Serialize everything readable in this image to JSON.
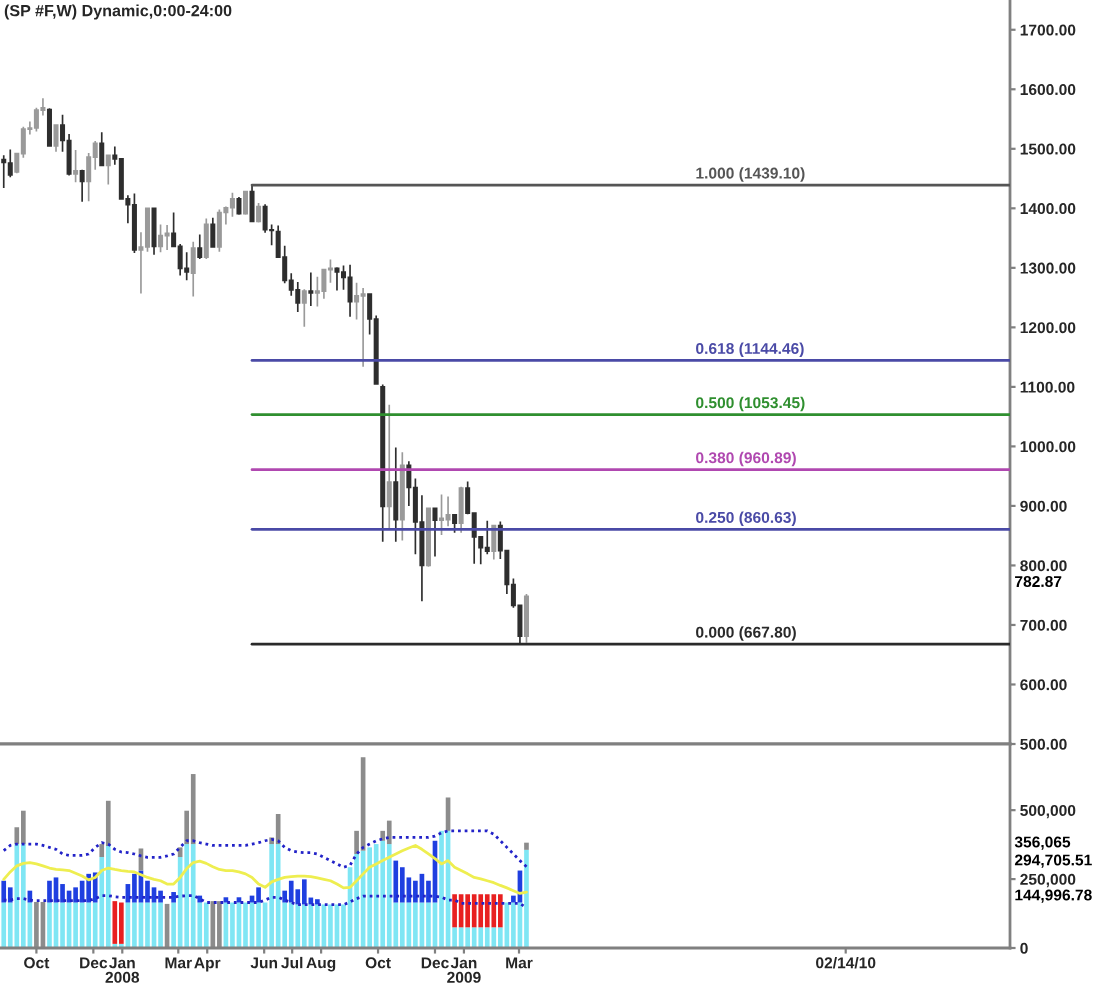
{
  "chart_data": [
    {
      "type": "candlestick",
      "title": "(SP #F,W) Dynamic,0:00-24:00",
      "x": [
        "2007-08-27",
        "2007-09-03",
        "2007-09-10",
        "2007-09-17",
        "2007-09-24",
        "2007-10-01",
        "2007-10-08",
        "2007-10-15",
        "2007-10-22",
        "2007-10-29",
        "2007-11-05",
        "2007-11-12",
        "2007-11-19",
        "2007-11-26",
        "2007-12-03",
        "2007-12-10",
        "2007-12-17",
        "2007-12-24",
        "2007-12-31",
        "2008-01-07",
        "2008-01-14",
        "2008-01-21",
        "2008-01-28",
        "2008-02-04",
        "2008-02-11",
        "2008-02-18",
        "2008-02-25",
        "2008-03-03",
        "2008-03-10",
        "2008-03-17",
        "2008-03-24",
        "2008-03-31",
        "2008-04-07",
        "2008-04-14",
        "2008-04-21",
        "2008-04-28",
        "2008-05-05",
        "2008-05-12",
        "2008-05-19",
        "2008-05-26",
        "2008-06-02",
        "2008-06-09",
        "2008-06-16",
        "2008-06-23",
        "2008-06-30",
        "2008-07-07",
        "2008-07-14",
        "2008-07-21",
        "2008-07-28",
        "2008-08-04",
        "2008-08-11",
        "2008-08-18",
        "2008-08-25",
        "2008-09-01",
        "2008-09-08",
        "2008-09-15",
        "2008-09-22",
        "2008-09-29",
        "2008-10-06",
        "2008-10-13",
        "2008-10-20",
        "2008-10-27",
        "2008-11-03",
        "2008-11-10",
        "2008-11-17",
        "2008-11-24",
        "2008-12-01",
        "2008-12-08",
        "2008-12-15",
        "2008-12-22",
        "2008-12-29",
        "2009-01-05",
        "2009-01-12",
        "2009-01-19",
        "2009-01-26",
        "2009-02-02",
        "2009-02-09",
        "2009-02-16",
        "2009-02-23",
        "2009-03-02",
        "2009-03-09"
      ],
      "ohlc": [
        [
          1482,
          1489,
          1434,
          1477
        ],
        [
          1476,
          1499,
          1452,
          1456
        ],
        [
          1461,
          1493,
          1459,
          1492
        ],
        [
          1492,
          1537,
          1485,
          1533
        ],
        [
          1533,
          1546,
          1524,
          1535
        ],
        [
          1535,
          1569,
          1529,
          1565
        ],
        [
          1565,
          1585,
          1556,
          1569
        ],
        [
          1566,
          1568,
          1505,
          1505
        ],
        [
          1505,
          1540,
          1495,
          1540
        ],
        [
          1540,
          1557,
          1495,
          1514
        ],
        [
          1514,
          1525,
          1455,
          1458
        ],
        [
          1458,
          1498,
          1444,
          1463
        ],
        [
          1463,
          1465,
          1411,
          1445
        ],
        [
          1445,
          1493,
          1412,
          1486
        ],
        [
          1486,
          1513,
          1465,
          1509
        ],
        [
          1509,
          1528,
          1472,
          1472
        ],
        [
          1472,
          1490,
          1440,
          1489
        ],
        [
          1489,
          1504,
          1473,
          1483
        ],
        [
          1483,
          1483,
          1416,
          1416
        ],
        [
          1416,
          1422,
          1375,
          1406
        ],
        [
          1406,
          1425,
          1325,
          1330
        ],
        [
          1330,
          1360,
          1257,
          1335
        ],
        [
          1335,
          1401,
          1327,
          1400
        ],
        [
          1400,
          1401,
          1322,
          1336
        ],
        [
          1336,
          1373,
          1326,
          1354
        ],
        [
          1354,
          1372,
          1330,
          1358
        ],
        [
          1358,
          1393,
          1335,
          1336
        ],
        [
          1336,
          1340,
          1287,
          1299
        ],
        [
          1299,
          1326,
          1279,
          1293
        ],
        [
          1291,
          1344,
          1252,
          1333
        ],
        [
          1333,
          1356,
          1315,
          1318
        ],
        [
          1318,
          1383,
          1315,
          1373
        ],
        [
          1373,
          1384,
          1335,
          1335
        ],
        [
          1335,
          1398,
          1327,
          1393
        ],
        [
          1393,
          1403,
          1373,
          1401
        ],
        [
          1401,
          1426,
          1386,
          1416
        ],
        [
          1416,
          1419,
          1389,
          1391
        ],
        [
          1391,
          1428,
          1389,
          1428
        ],
        [
          1428,
          1439.1,
          1377,
          1378
        ],
        [
          1378,
          1409,
          1376,
          1403
        ],
        [
          1403,
          1407,
          1359,
          1364
        ],
        [
          1364,
          1373,
          1338,
          1363
        ],
        [
          1361,
          1371,
          1317,
          1318
        ],
        [
          1318,
          1337,
          1274,
          1279
        ],
        [
          1279,
          1291,
          1253,
          1263
        ],
        [
          1263,
          1276,
          1226,
          1241
        ],
        [
          1241,
          1264,
          1201,
          1261
        ],
        [
          1261,
          1292,
          1236,
          1258
        ],
        [
          1258,
          1285,
          1235,
          1261
        ],
        [
          1261,
          1298,
          1248,
          1297
        ],
        [
          1297,
          1314,
          1275,
          1299
        ],
        [
          1299,
          1301,
          1262,
          1293
        ],
        [
          1293,
          1304,
          1263,
          1284
        ],
        [
          1284,
          1305,
          1218,
          1243
        ],
        [
          1243,
          1275,
          1213,
          1253
        ],
        [
          1253,
          1266,
          1134,
          1256
        ],
        [
          1256,
          1256,
          1188,
          1214
        ],
        [
          1214,
          1220,
          1105,
          1105
        ],
        [
          1100,
          1104,
          840,
          899
        ],
        [
          899,
          1070,
          862,
          940
        ],
        [
          940,
          998,
          840,
          877
        ],
        [
          877,
          990,
          842,
          968
        ],
        [
          968,
          975,
          900,
          931
        ],
        [
          931,
          946,
          819,
          873
        ],
        [
          873,
          918,
          740,
          800
        ],
        [
          800,
          896,
          798,
          896
        ],
        [
          896,
          896,
          815,
          876
        ],
        [
          876,
          919,
          851,
          879
        ],
        [
          877,
          916,
          866,
          885
        ],
        [
          885,
          885,
          855,
          871
        ],
        [
          871,
          932,
          855,
          930
        ],
        [
          930,
          941,
          886,
          888
        ],
        [
          888,
          889,
          803,
          848
        ],
        [
          848,
          849,
          802,
          830
        ],
        [
          830,
          875,
          819,
          824
        ],
        [
          824,
          868,
          810,
          867
        ],
        [
          867,
          874,
          811,
          825
        ],
        [
          825,
          825,
          752,
          768
        ],
        [
          768,
          778,
          729,
          733
        ],
        [
          733,
          734,
          667.8,
          681
        ],
        [
          681,
          752,
          670,
          748
        ]
      ],
      "colors": [
        "#2e2e2e",
        "#2e2e2e",
        "#9a9a9a",
        "#9a9a9a",
        "#9a9a9a",
        "#9a9a9a",
        "#9a9a9a",
        "#2e2e2e",
        "#9a9a9a",
        "#2e2e2e",
        "#2e2e2e",
        "#9a9a9a",
        "#2e2e2e",
        "#9a9a9a",
        "#9a9a9a",
        "#2e2e2e",
        "#9a9a9a",
        "#2e2e2e",
        "#2e2e2e",
        "#2e2e2e",
        "#2e2e2e",
        "#9a9a9a",
        "#9a9a9a",
        "#2e2e2e",
        "#9a9a9a",
        "#9a9a9a",
        "#2e2e2e",
        "#2e2e2e",
        "#2e2e2e",
        "#9a9a9a",
        "#2e2e2e",
        "#9a9a9a",
        "#2e2e2e",
        "#9a9a9a",
        "#9a9a9a",
        "#9a9a9a",
        "#2e2e2e",
        "#9a9a9a",
        "#2e2e2e",
        "#9a9a9a",
        "#2e2e2e",
        "#2e2e2e",
        "#2e2e2e",
        "#2e2e2e",
        "#2e2e2e",
        "#2e2e2e",
        "#9a9a9a",
        "#2e2e2e",
        "#9a9a9a",
        "#9a9a9a",
        "#9a9a9a",
        "#2e2e2e",
        "#2e2e2e",
        "#2e2e2e",
        "#9a9a9a",
        "#9a9a9a",
        "#2e2e2e",
        "#2e2e2e",
        "#2e2e2e",
        "#9a9a9a",
        "#2e2e2e",
        "#9a9a9a",
        "#2e2e2e",
        "#2e2e2e",
        "#2e2e2e",
        "#9a9a9a",
        "#2e2e2e",
        "#9a9a9a",
        "#9a9a9a",
        "#2e2e2e",
        "#9a9a9a",
        "#2e2e2e",
        "#2e2e2e",
        "#2e2e2e",
        "#2e2e2e",
        "#9a9a9a",
        "#2e2e2e",
        "#2e2e2e",
        "#2e2e2e",
        "#2e2e2e",
        "#9a9a9a"
      ],
      "series": [
        {
          "type": "line",
          "name": "1.000 (1439.10)",
          "color": "#555555",
          "x": [
            "2008-05-19",
            "2010-08-09"
          ],
          "values": [
            1439.1,
            1439.1
          ]
        },
        {
          "type": "line",
          "name": "0.618 (1144.46)",
          "color": "#4a4aa6",
          "x": [
            "2008-05-19",
            "2010-08-09"
          ],
          "values": [
            1144.46,
            1144.46
          ]
        },
        {
          "type": "line",
          "name": "0.500 (1053.45)",
          "color": "#2f8f2f",
          "x": [
            "2008-05-19",
            "2010-08-09"
          ],
          "values": [
            1053.45,
            1053.45
          ]
        },
        {
          "type": "line",
          "name": "0.380 (960.89)",
          "color": "#b048b0",
          "x": [
            "2008-05-19",
            "2010-08-09"
          ],
          "values": [
            960.89,
            960.89
          ]
        },
        {
          "type": "line",
          "name": "0.250 (860.63)",
          "color": "#4a4aa6",
          "x": [
            "2008-05-19",
            "2010-08-09"
          ],
          "values": [
            860.63,
            860.63
          ]
        },
        {
          "type": "line",
          "name": "0.000 (667.80)",
          "color": "#2a2a2a",
          "x": [
            "2008-05-19",
            "2010-08-09"
          ],
          "values": [
            667.8,
            667.8
          ]
        }
      ],
      "xlim": [
        "2007-08-23",
        "2010-08-09"
      ],
      "ylim": [
        500,
        1750
      ],
      "yticks": [
        {
          "value": 500,
          "label": "500.00"
        },
        {
          "value": 600,
          "label": "600.00"
        },
        {
          "value": 700,
          "label": "700.00"
        },
        {
          "value": 800,
          "label": "800.00"
        },
        {
          "value": 900,
          "label": "900.00"
        },
        {
          "value": 1000,
          "label": "1000.00"
        },
        {
          "value": 1100,
          "label": "1100.00"
        },
        {
          "value": 1200,
          "label": "1200.00"
        },
        {
          "value": 1300,
          "label": "1300.00"
        },
        {
          "value": 1400,
          "label": "1400.00"
        },
        {
          "value": 1500,
          "label": "1500.00"
        },
        {
          "value": 1600,
          "label": "1600.00"
        },
        {
          "value": 1700,
          "label": "1700.00"
        }
      ],
      "tick_labels": "y",
      "annotations": [
        "782.87"
      ]
    },
    {
      "type": "bar",
      "stacked": true,
      "x": [
        "2007-08-27",
        "2007-09-03",
        "2007-09-10",
        "2007-09-17",
        "2007-09-24",
        "2007-10-01",
        "2007-10-08",
        "2007-10-15",
        "2007-10-22",
        "2007-10-29",
        "2007-11-05",
        "2007-11-12",
        "2007-11-19",
        "2007-11-26",
        "2007-12-03",
        "2007-12-10",
        "2007-12-17",
        "2007-12-24",
        "2007-12-31",
        "2008-01-07",
        "2008-01-14",
        "2008-01-21",
        "2008-01-28",
        "2008-02-04",
        "2008-02-11",
        "2008-02-18",
        "2008-02-25",
        "2008-03-03",
        "2008-03-10",
        "2008-03-17",
        "2008-03-24",
        "2008-03-31",
        "2008-04-07",
        "2008-04-14",
        "2008-04-21",
        "2008-04-28",
        "2008-05-05",
        "2008-05-12",
        "2008-05-19",
        "2008-05-26",
        "2008-06-02",
        "2008-06-09",
        "2008-06-16",
        "2008-06-23",
        "2008-06-30",
        "2008-07-07",
        "2008-07-14",
        "2008-07-21",
        "2008-07-28",
        "2008-08-04",
        "2008-08-11",
        "2008-08-18",
        "2008-08-25",
        "2008-09-01",
        "2008-09-08",
        "2008-09-15",
        "2008-09-22",
        "2008-09-29",
        "2008-10-06",
        "2008-10-13",
        "2008-10-20",
        "2008-10-27",
        "2008-11-03",
        "2008-11-10",
        "2008-11-17",
        "2008-11-24",
        "2008-12-01",
        "2008-12-08",
        "2008-12-15",
        "2008-12-22",
        "2008-12-29",
        "2009-01-05",
        "2009-01-12",
        "2009-01-19",
        "2009-01-26",
        "2009-02-02",
        "2009-02-09",
        "2009-02-16",
        "2009-02-23",
        "2009-03-02",
        "2009-03-09"
      ],
      "series": [
        {
          "type": "bar",
          "color": "#7fe6f4",
          "values": [
            165000,
            165000,
            377000,
            377000,
            165000,
            null,
            null,
            165000,
            165000,
            165000,
            165000,
            165000,
            165000,
            165000,
            165000,
            330000,
            370000,
            15000,
            15000,
            165000,
            165000,
            165000,
            165000,
            165000,
            165000,
            null,
            165000,
            330000,
            377000,
            377000,
            165000,
            165000,
            null,
            null,
            165000,
            165000,
            165000,
            165000,
            165000,
            165000,
            165000,
            377000,
            377000,
            165000,
            165000,
            158000,
            158000,
            158000,
            158000,
            158000,
            158000,
            158000,
            158000,
            293000,
            341000,
            353000,
            365000,
            377000,
            389000,
            377000,
            165000,
            165000,
            165000,
            165000,
            165000,
            165000,
            165000,
            425000,
            425000,
            75000,
            75000,
            75000,
            75000,
            75000,
            75000,
            75000,
            75000,
            165000,
            165000,
            165000,
            356065
          ]
        },
        {
          "type": "bar",
          "color": "#1f3fe0",
          "values": [
            79000,
            55000,
            null,
            null,
            43000,
            null,
            null,
            79000,
            91000,
            67000,
            43000,
            55000,
            79000,
            104000,
            109000,
            null,
            null,
            null,
            null,
            67000,
            104000,
            116000,
            79000,
            55000,
            43000,
            null,
            38000,
            null,
            null,
            null,
            25000,
            null,
            null,
            null,
            19000,
            null,
            19000,
            null,
            25000,
            55000,
            null,
            null,
            null,
            43000,
            79000,
            55000,
            91000,
            25000,
            19000,
            null,
            null,
            null,
            null,
            null,
            null,
            null,
            null,
            null,
            null,
            null,
            152000,
            128000,
            91000,
            79000,
            104000,
            79000,
            224000,
            null,
            null,
            null,
            null,
            null,
            null,
            null,
            null,
            null,
            null,
            null,
            25000,
            116000,
            null
          ]
        },
        {
          "type": "bar",
          "color": "#e82020",
          "values": [
            null,
            null,
            null,
            null,
            null,
            null,
            null,
            null,
            null,
            null,
            null,
            null,
            null,
            null,
            null,
            null,
            null,
            155000,
            150000,
            null,
            null,
            null,
            null,
            null,
            null,
            null,
            null,
            null,
            null,
            null,
            null,
            null,
            null,
            null,
            null,
            null,
            null,
            null,
            null,
            null,
            null,
            null,
            null,
            null,
            null,
            null,
            null,
            null,
            null,
            null,
            null,
            null,
            null,
            null,
            null,
            null,
            null,
            null,
            null,
            null,
            null,
            null,
            null,
            null,
            null,
            null,
            null,
            null,
            null,
            120000,
            120000,
            120000,
            120000,
            120000,
            120000,
            120000,
            120000,
            null,
            null,
            null,
            null
          ]
        },
        {
          "type": "bar",
          "color": "#8c8c8c",
          "values": [
            null,
            null,
            61000,
            121000,
            null,
            167000,
            167000,
            null,
            null,
            null,
            null,
            null,
            null,
            null,
            null,
            47000,
            164000,
            null,
            null,
            null,
            null,
            80000,
            null,
            null,
            null,
            160000,
            null,
            35000,
            121000,
            254000,
            null,
            null,
            170000,
            170000,
            null,
            null,
            null,
            null,
            null,
            null,
            null,
            24000,
            109000,
            null,
            null,
            null,
            null,
            null,
            null,
            null,
            null,
            null,
            null,
            null,
            84000,
            339000,
            null,
            null,
            36000,
            85000,
            null,
            null,
            null,
            null,
            null,
            null,
            null,
            null,
            121000,
            null,
            null,
            null,
            null,
            null,
            null,
            null,
            null,
            null,
            null,
            null,
            26000
          ]
        },
        {
          "type": "line",
          "color": "#2323c8",
          "line_style": "dotted",
          "values": [
            353000,
            372000,
            377000,
            377000,
            377000,
            377000,
            372000,
            365000,
            358000,
            341000,
            336000,
            336000,
            336000,
            341000,
            365000,
            382000,
            377000,
            358000,
            348000,
            346000,
            341000,
            334000,
            329000,
            329000,
            329000,
            334000,
            341000,
            365000,
            389000,
            389000,
            382000,
            377000,
            372000,
            372000,
            372000,
            372000,
            372000,
            372000,
            377000,
            382000,
            389000,
            394000,
            389000,
            365000,
            353000,
            348000,
            346000,
            346000,
            341000,
            329000,
            317000,
            305000,
            293000,
            300000,
            341000,
            365000,
            377000,
            389000,
            396000,
            401000,
            401000,
            401000,
            401000,
            401000,
            401000,
            401000,
            406000,
            418000,
            425000,
            425000,
            425000,
            425000,
            425000,
            425000,
            425000,
            413000,
            389000,
            365000,
            341000,
            317000,
            295000
          ]
        },
        {
          "type": "line",
          "color": "#2323c8",
          "line_style": "dotted",
          "values": [
            174000,
            174000,
            179000,
            179000,
            174000,
            172000,
            172000,
            172000,
            172000,
            172000,
            172000,
            172000,
            172000,
            172000,
            179000,
            190000,
            190000,
            186000,
            184000,
            184000,
            184000,
            184000,
            184000,
            184000,
            184000,
            184000,
            184000,
            188000,
            190000,
            190000,
            179000,
            165000,
            165000,
            165000,
            165000,
            165000,
            165000,
            165000,
            165000,
            165000,
            174000,
            184000,
            184000,
            174000,
            165000,
            157000,
            157000,
            157000,
            157000,
            157000,
            157000,
            157000,
            157000,
            167000,
            179000,
            188000,
            188000,
            188000,
            188000,
            188000,
            188000,
            188000,
            188000,
            188000,
            188000,
            188000,
            188000,
            184000,
            174000,
            174000,
            162000,
            162000,
            162000,
            162000,
            162000,
            162000,
            162000,
            162000,
            162000,
            162000,
            145000
          ]
        },
        {
          "type": "line",
          "color": "#eeee50",
          "values": [
            249000,
            276000,
            298000,
            307000,
            310000,
            305000,
            298000,
            290000,
            285000,
            283000,
            281000,
            271000,
            261000,
            247000,
            256000,
            281000,
            290000,
            285000,
            281000,
            278000,
            276000,
            266000,
            256000,
            249000,
            244000,
            232000,
            232000,
            256000,
            288000,
            310000,
            315000,
            307000,
            295000,
            285000,
            281000,
            281000,
            276000,
            269000,
            256000,
            232000,
            220000,
            240000,
            249000,
            256000,
            259000,
            261000,
            261000,
            259000,
            254000,
            249000,
            244000,
            232000,
            218000,
            220000,
            244000,
            269000,
            293000,
            305000,
            317000,
            329000,
            341000,
            353000,
            363000,
            372000,
            358000,
            341000,
            324000,
            305000,
            317000,
            293000,
            281000,
            269000,
            256000,
            251000,
            244000,
            237000,
            227000,
            218000,
            208000,
            198000,
            203000
          ]
        }
      ],
      "xlim": [
        "2007-08-23",
        "2010-08-09"
      ],
      "ylim": [
        0,
        740000
      ],
      "yticks": [
        {
          "value": 0,
          "label": "0"
        },
        {
          "value": 250000,
          "label": "250,000"
        },
        {
          "value": 500000,
          "label": "500,000"
        }
      ],
      "xticks": [
        {
          "value": "2007-10-01",
          "label": "Oct"
        },
        {
          "value": "2007-12-01",
          "label": "Dec"
        },
        {
          "value": "2008-01-01",
          "label": "Jan\n2008"
        },
        {
          "value": "2008-03-01",
          "label": "Mar"
        },
        {
          "value": "2008-04-01",
          "label": "Apr"
        },
        {
          "value": "2008-06-01",
          "label": "Jun"
        },
        {
          "value": "2008-07-01",
          "label": "Jul"
        },
        {
          "value": "2008-08-01",
          "label": "Aug"
        },
        {
          "value": "2008-10-01",
          "label": "Oct"
        },
        {
          "value": "2008-12-01",
          "label": "Dec"
        },
        {
          "value": "2009-01-01",
          "label": "Jan\n2009"
        },
        {
          "value": "2009-03-01",
          "label": "Mar"
        },
        {
          "value": "2010-02-14",
          "label": "02/14/10"
        }
      ],
      "annotations": [
        "356,065",
        "294,705.51",
        "144,996.78"
      ]
    }
  ]
}
